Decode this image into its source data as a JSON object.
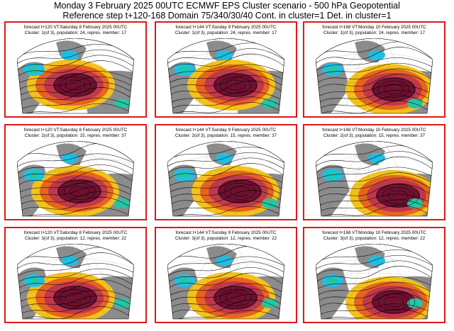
{
  "header": {
    "line1": "Monday 3 February 2025 00UTC ECMWF EPS Cluster scenario - 500 hPa Geopotential",
    "line2": "Reference step t+120-168 Domain 75/340/30/40 Cont. in cluster=1 Det. in cluster=1"
  },
  "colors": {
    "frame": "#e01818",
    "anomaly_strong_positive": "#6e1030",
    "anomaly_positive": "#c0384a",
    "anomaly_weak_positive": "#e8641e",
    "anomaly_slight_positive": "#f4c21a",
    "anomaly_slight_negative": "#23c7a6",
    "anomaly_negative": "#1ec0e6",
    "land": "#8c8c8c",
    "contour": "#000000"
  },
  "chart_data": {
    "type": "map_grid",
    "rows": 3,
    "cols": 3,
    "panels": [
      {
        "forecast": "forecast t+120 VT:Saturday 8 February 2025 00UTC",
        "cluster": "Cluster: 1(of 3), population: 24, repres. member: 17"
      },
      {
        "forecast": "forecast t+144 VT:Sunday 9 February 2025 00UTC",
        "cluster": "Cluster: 1(of 3), population: 24, repres. member: 17"
      },
      {
        "forecast": "forecast t+168 VT:Monday 10 February 2025 00UTC",
        "cluster": "Cluster: 1(of 3), population: 24, repres. member: 17"
      },
      {
        "forecast": "forecast t+120 VT:Saturday 8 February 2025 00UTC",
        "cluster": "Cluster: 2(of 3), population: 15, repres. member: 37"
      },
      {
        "forecast": "forecast t+144 VT:Sunday 9 February 2025 00UTC",
        "cluster": "Cluster: 2(of 3), population: 15, repres. member: 37"
      },
      {
        "forecast": "forecast t+168 VT:Monday 10 February 2025 00UTC",
        "cluster": "Cluster: 2(of 3), population: 15, repres. member: 37"
      },
      {
        "forecast": "forecast t+120 VT:Saturday 8 February 2025 00UTC",
        "cluster": "Cluster: 3(of 3), population: 12, repres. member: 22"
      },
      {
        "forecast": "forecast t+144 VT:Sunday 9 February 2025 00UTC",
        "cluster": "Cluster: 3(of 3), population: 12, repres. member: 22"
      },
      {
        "forecast": "forecast t+168 VT:Monday 10 February 2025 00UTC",
        "cluster": "Cluster: 3(of 3), population: 12, repres. member: 22"
      }
    ]
  }
}
